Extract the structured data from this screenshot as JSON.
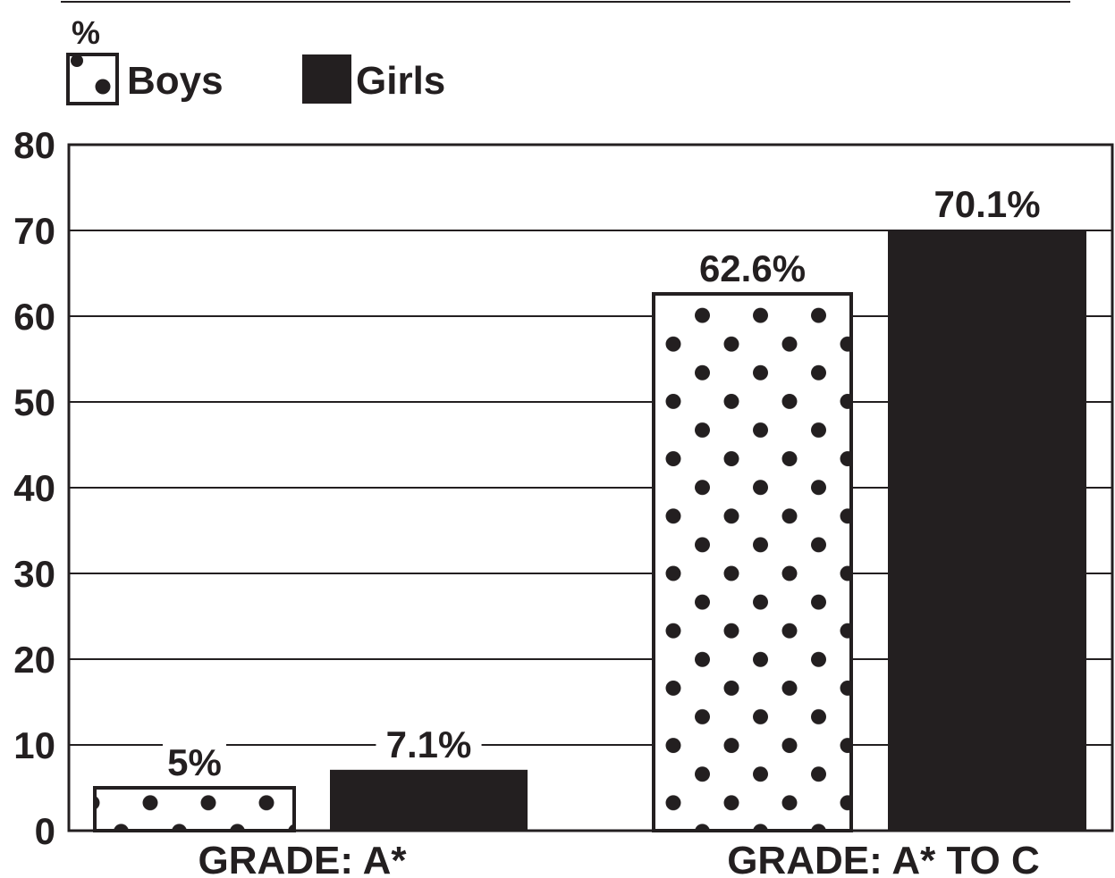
{
  "chart_data": {
    "type": "bar",
    "title": "",
    "xlabel": "",
    "ylabel": "%",
    "ylim": [
      0,
      80
    ],
    "yticks": [
      0,
      10,
      20,
      30,
      40,
      50,
      60,
      70,
      80
    ],
    "grid": true,
    "legend_position": "top-left",
    "categories": [
      "GRADE: A*",
      "GRADE: A* TO C"
    ],
    "series": [
      {
        "name": "Boys",
        "values": [
          5,
          62.6
        ],
        "labels": [
          "5%",
          "62.6%"
        ],
        "pattern": "dots",
        "color": "#ffffff"
      },
      {
        "name": "Girls",
        "values": [
          7.1,
          70.1
        ],
        "labels": [
          "7.1%",
          "70.1%"
        ],
        "pattern": "solid",
        "color": "#231f20"
      }
    ],
    "ink_color": "#231f20"
  }
}
